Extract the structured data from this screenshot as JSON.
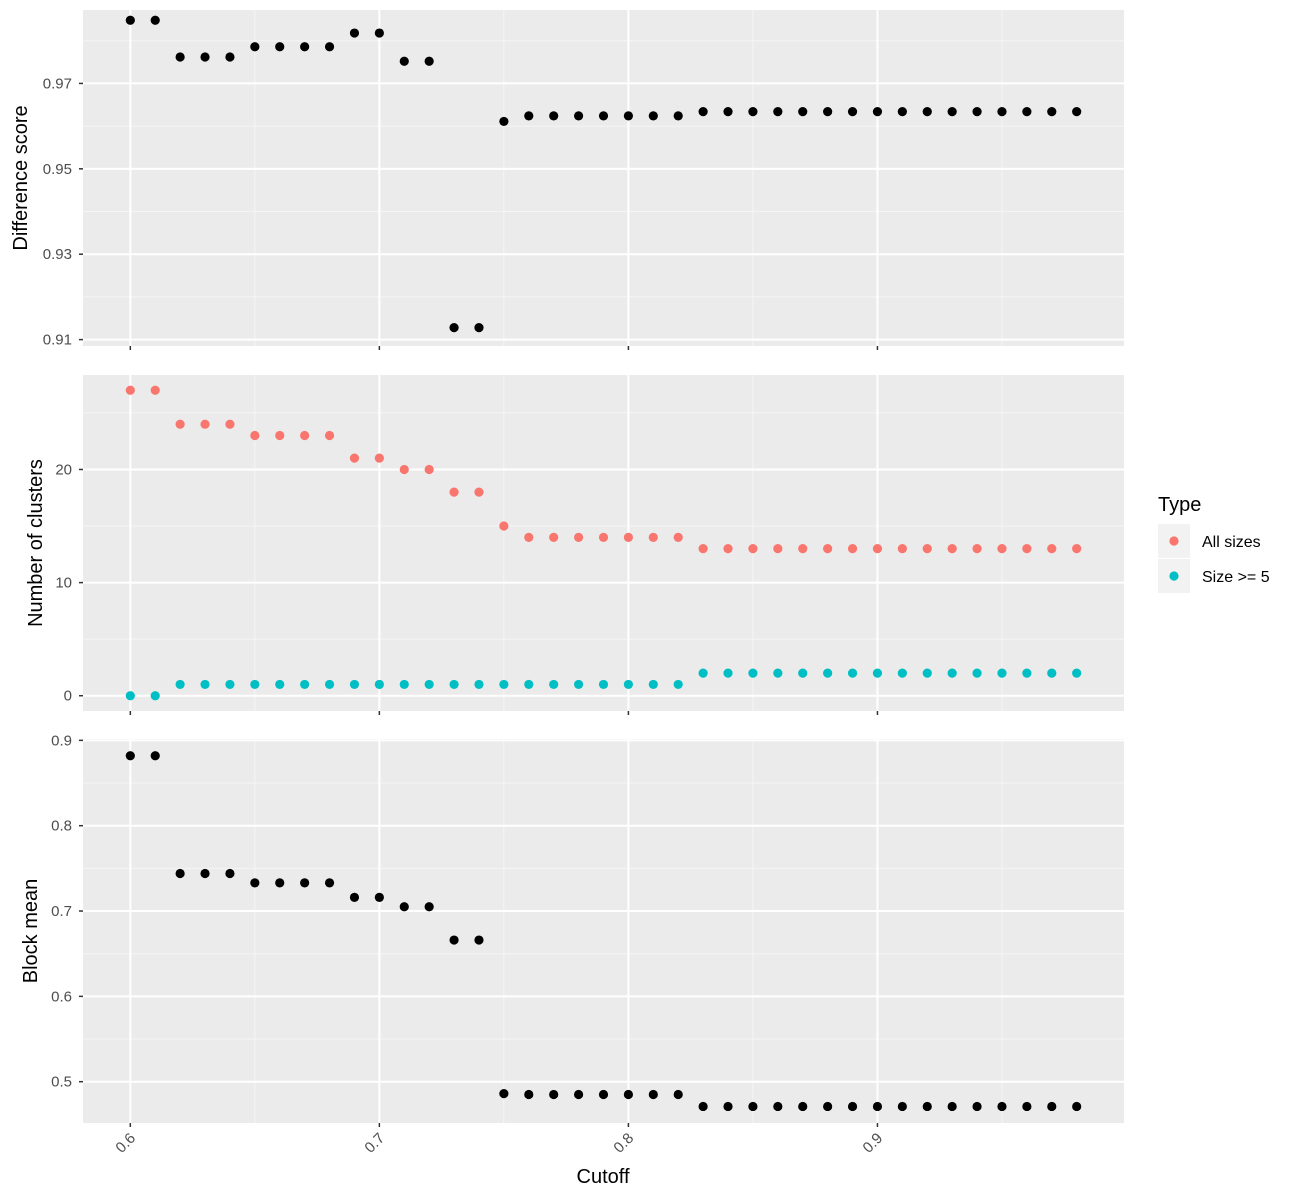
{
  "colors": {
    "panel_bg": "#ebebeb",
    "grid_major": "#ffffff",
    "grid_minor": "#f5f5f5",
    "tick_text": "#4d4d4d",
    "point_black": "#000000",
    "all_sizes": "#f8766d",
    "size_ge_5": "#00bfc4"
  },
  "chart_data": [
    {
      "type": "scatter",
      "ylabel": "Difference score",
      "ylim": [
        0.9085,
        0.9872
      ],
      "y_ticks": [
        0.91,
        0.93,
        0.95,
        0.97
      ],
      "y_tick_labels": [
        "0.91",
        "0.93",
        "0.95",
        "0.97"
      ],
      "xlim": [
        0.581,
        0.999
      ],
      "x_ticks": [
        0.6,
        0.7,
        0.8,
        0.9
      ],
      "grid": true,
      "series": [
        {
          "color": "#000000",
          "x": [
            0.6,
            0.61,
            0.62,
            0.63,
            0.64,
            0.65,
            0.66,
            0.67,
            0.68,
            0.69,
            0.7,
            0.71,
            0.72,
            0.73,
            0.74,
            0.75,
            0.76,
            0.77,
            0.78,
            0.79,
            0.8,
            0.81,
            0.82,
            0.83,
            0.84,
            0.85,
            0.86,
            0.87,
            0.88,
            0.89,
            0.9,
            0.91,
            0.92,
            0.93,
            0.94,
            0.95,
            0.96,
            0.97,
            0.98
          ],
          "y": [
            0.9848,
            0.9848,
            0.9762,
            0.9762,
            0.9762,
            0.9786,
            0.9786,
            0.9786,
            0.9786,
            0.9818,
            0.9818,
            0.9752,
            0.9752,
            0.9128,
            0.9128,
            0.9611,
            0.9624,
            0.9624,
            0.9624,
            0.9624,
            0.9624,
            0.9624,
            0.9624,
            0.9634,
            0.9634,
            0.9634,
            0.9634,
            0.9634,
            0.9634,
            0.9634,
            0.9634,
            0.9634,
            0.9634,
            0.9634,
            0.9634,
            0.9634,
            0.9634,
            0.9634,
            0.9634
          ]
        }
      ]
    },
    {
      "type": "scatter",
      "ylabel": "Number of clusters",
      "ylim": [
        -1.35,
        28.35
      ],
      "y_ticks": [
        0,
        10,
        20
      ],
      "y_tick_labels": [
        "0",
        "10",
        "20"
      ],
      "xlim": [
        0.581,
        0.999
      ],
      "x_ticks": [
        0.6,
        0.7,
        0.8,
        0.9
      ],
      "grid": true,
      "legend": {
        "title": "Type",
        "position": "right"
      },
      "series": [
        {
          "name": "All sizes",
          "color": "#f8766d",
          "x": [
            0.6,
            0.61,
            0.62,
            0.63,
            0.64,
            0.65,
            0.66,
            0.67,
            0.68,
            0.69,
            0.7,
            0.71,
            0.72,
            0.73,
            0.74,
            0.75,
            0.76,
            0.77,
            0.78,
            0.79,
            0.8,
            0.81,
            0.82,
            0.83,
            0.84,
            0.85,
            0.86,
            0.87,
            0.88,
            0.89,
            0.9,
            0.91,
            0.92,
            0.93,
            0.94,
            0.95,
            0.96,
            0.97,
            0.98
          ],
          "y": [
            27,
            27,
            24,
            24,
            24,
            23,
            23,
            23,
            23,
            21,
            21,
            20,
            20,
            18,
            18,
            15,
            14,
            14,
            14,
            14,
            14,
            14,
            14,
            13,
            13,
            13,
            13,
            13,
            13,
            13,
            13,
            13,
            13,
            13,
            13,
            13,
            13,
            13,
            13
          ]
        },
        {
          "name": "Size >= 5",
          "color": "#00bfc4",
          "x": [
            0.6,
            0.61,
            0.62,
            0.63,
            0.64,
            0.65,
            0.66,
            0.67,
            0.68,
            0.69,
            0.7,
            0.71,
            0.72,
            0.73,
            0.74,
            0.75,
            0.76,
            0.77,
            0.78,
            0.79,
            0.8,
            0.81,
            0.82,
            0.83,
            0.84,
            0.85,
            0.86,
            0.87,
            0.88,
            0.89,
            0.9,
            0.91,
            0.92,
            0.93,
            0.94,
            0.95,
            0.96,
            0.97,
            0.98
          ],
          "y": [
            0,
            0,
            1,
            1,
            1,
            1,
            1,
            1,
            1,
            1,
            1,
            1,
            1,
            1,
            1,
            1,
            1,
            1,
            1,
            1,
            1,
            1,
            1,
            2,
            2,
            2,
            2,
            2,
            2,
            2,
            2,
            2,
            2,
            2,
            2,
            2,
            2,
            2,
            2
          ]
        }
      ]
    },
    {
      "type": "scatter",
      "ylabel": "Block mean",
      "xlabel": "Cutoff",
      "ylim": [
        0.4516,
        0.9016
      ],
      "y_ticks": [
        0.5,
        0.6,
        0.7,
        0.8,
        0.9
      ],
      "y_tick_labels": [
        "0.5",
        "0.6",
        "0.7",
        "0.8",
        "0.9"
      ],
      "xlim": [
        0.581,
        0.999
      ],
      "x_ticks": [
        0.6,
        0.7,
        0.8,
        0.9
      ],
      "x_tick_labels": [
        "0.6",
        "0.7",
        "0.8",
        "0.9"
      ],
      "grid": true,
      "series": [
        {
          "color": "#000000",
          "x": [
            0.6,
            0.61,
            0.62,
            0.63,
            0.64,
            0.65,
            0.66,
            0.67,
            0.68,
            0.69,
            0.7,
            0.71,
            0.72,
            0.73,
            0.74,
            0.75,
            0.76,
            0.77,
            0.78,
            0.79,
            0.8,
            0.81,
            0.82,
            0.83,
            0.84,
            0.85,
            0.86,
            0.87,
            0.88,
            0.89,
            0.9,
            0.91,
            0.92,
            0.93,
            0.94,
            0.95,
            0.96,
            0.97,
            0.98
          ],
          "y": [
            0.882,
            0.882,
            0.744,
            0.744,
            0.744,
            0.733,
            0.733,
            0.733,
            0.733,
            0.716,
            0.716,
            0.705,
            0.705,
            0.666,
            0.666,
            0.486,
            0.485,
            0.485,
            0.485,
            0.485,
            0.485,
            0.485,
            0.485,
            0.471,
            0.471,
            0.471,
            0.471,
            0.471,
            0.471,
            0.471,
            0.471,
            0.471,
            0.471,
            0.471,
            0.471,
            0.471,
            0.471,
            0.471,
            0.471
          ]
        }
      ]
    }
  ]
}
